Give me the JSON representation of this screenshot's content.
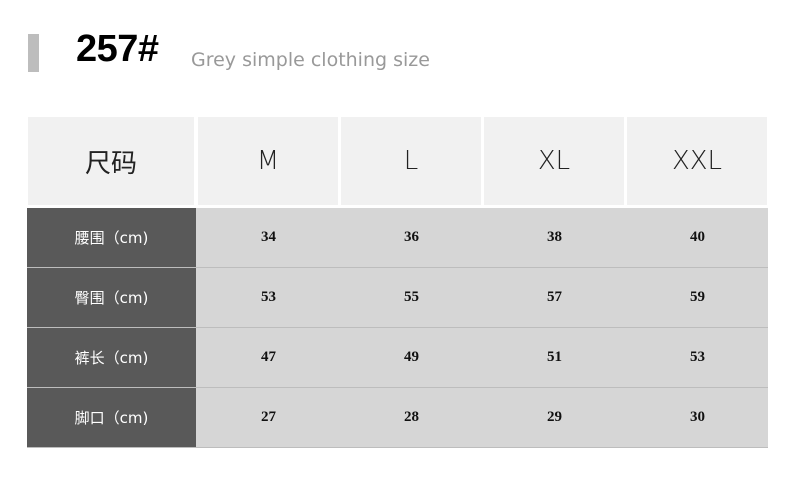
{
  "header": {
    "code": "257#",
    "subtitle": "Grey simple clothing size"
  },
  "table": {
    "columns": [
      "尺码",
      "M",
      "L",
      "XL",
      "XXL"
    ],
    "rows": [
      {
        "label": "腰围（cm)",
        "values": [
          "34",
          "36",
          "38",
          "40"
        ]
      },
      {
        "label": "臀围（cm)",
        "values": [
          "53",
          "55",
          "57",
          "59"
        ]
      },
      {
        "label": "裤长（cm)",
        "values": [
          "47",
          "49",
          "51",
          "53"
        ]
      },
      {
        "label": "脚口（cm)",
        "values": [
          "27",
          "28",
          "29",
          "30"
        ]
      }
    ]
  },
  "colors": {
    "label_bg": "#595959",
    "cell_bg": "#d6d6d6",
    "header_bg": "#f1f1f1",
    "accent_bar": "#bdbdbd"
  }
}
